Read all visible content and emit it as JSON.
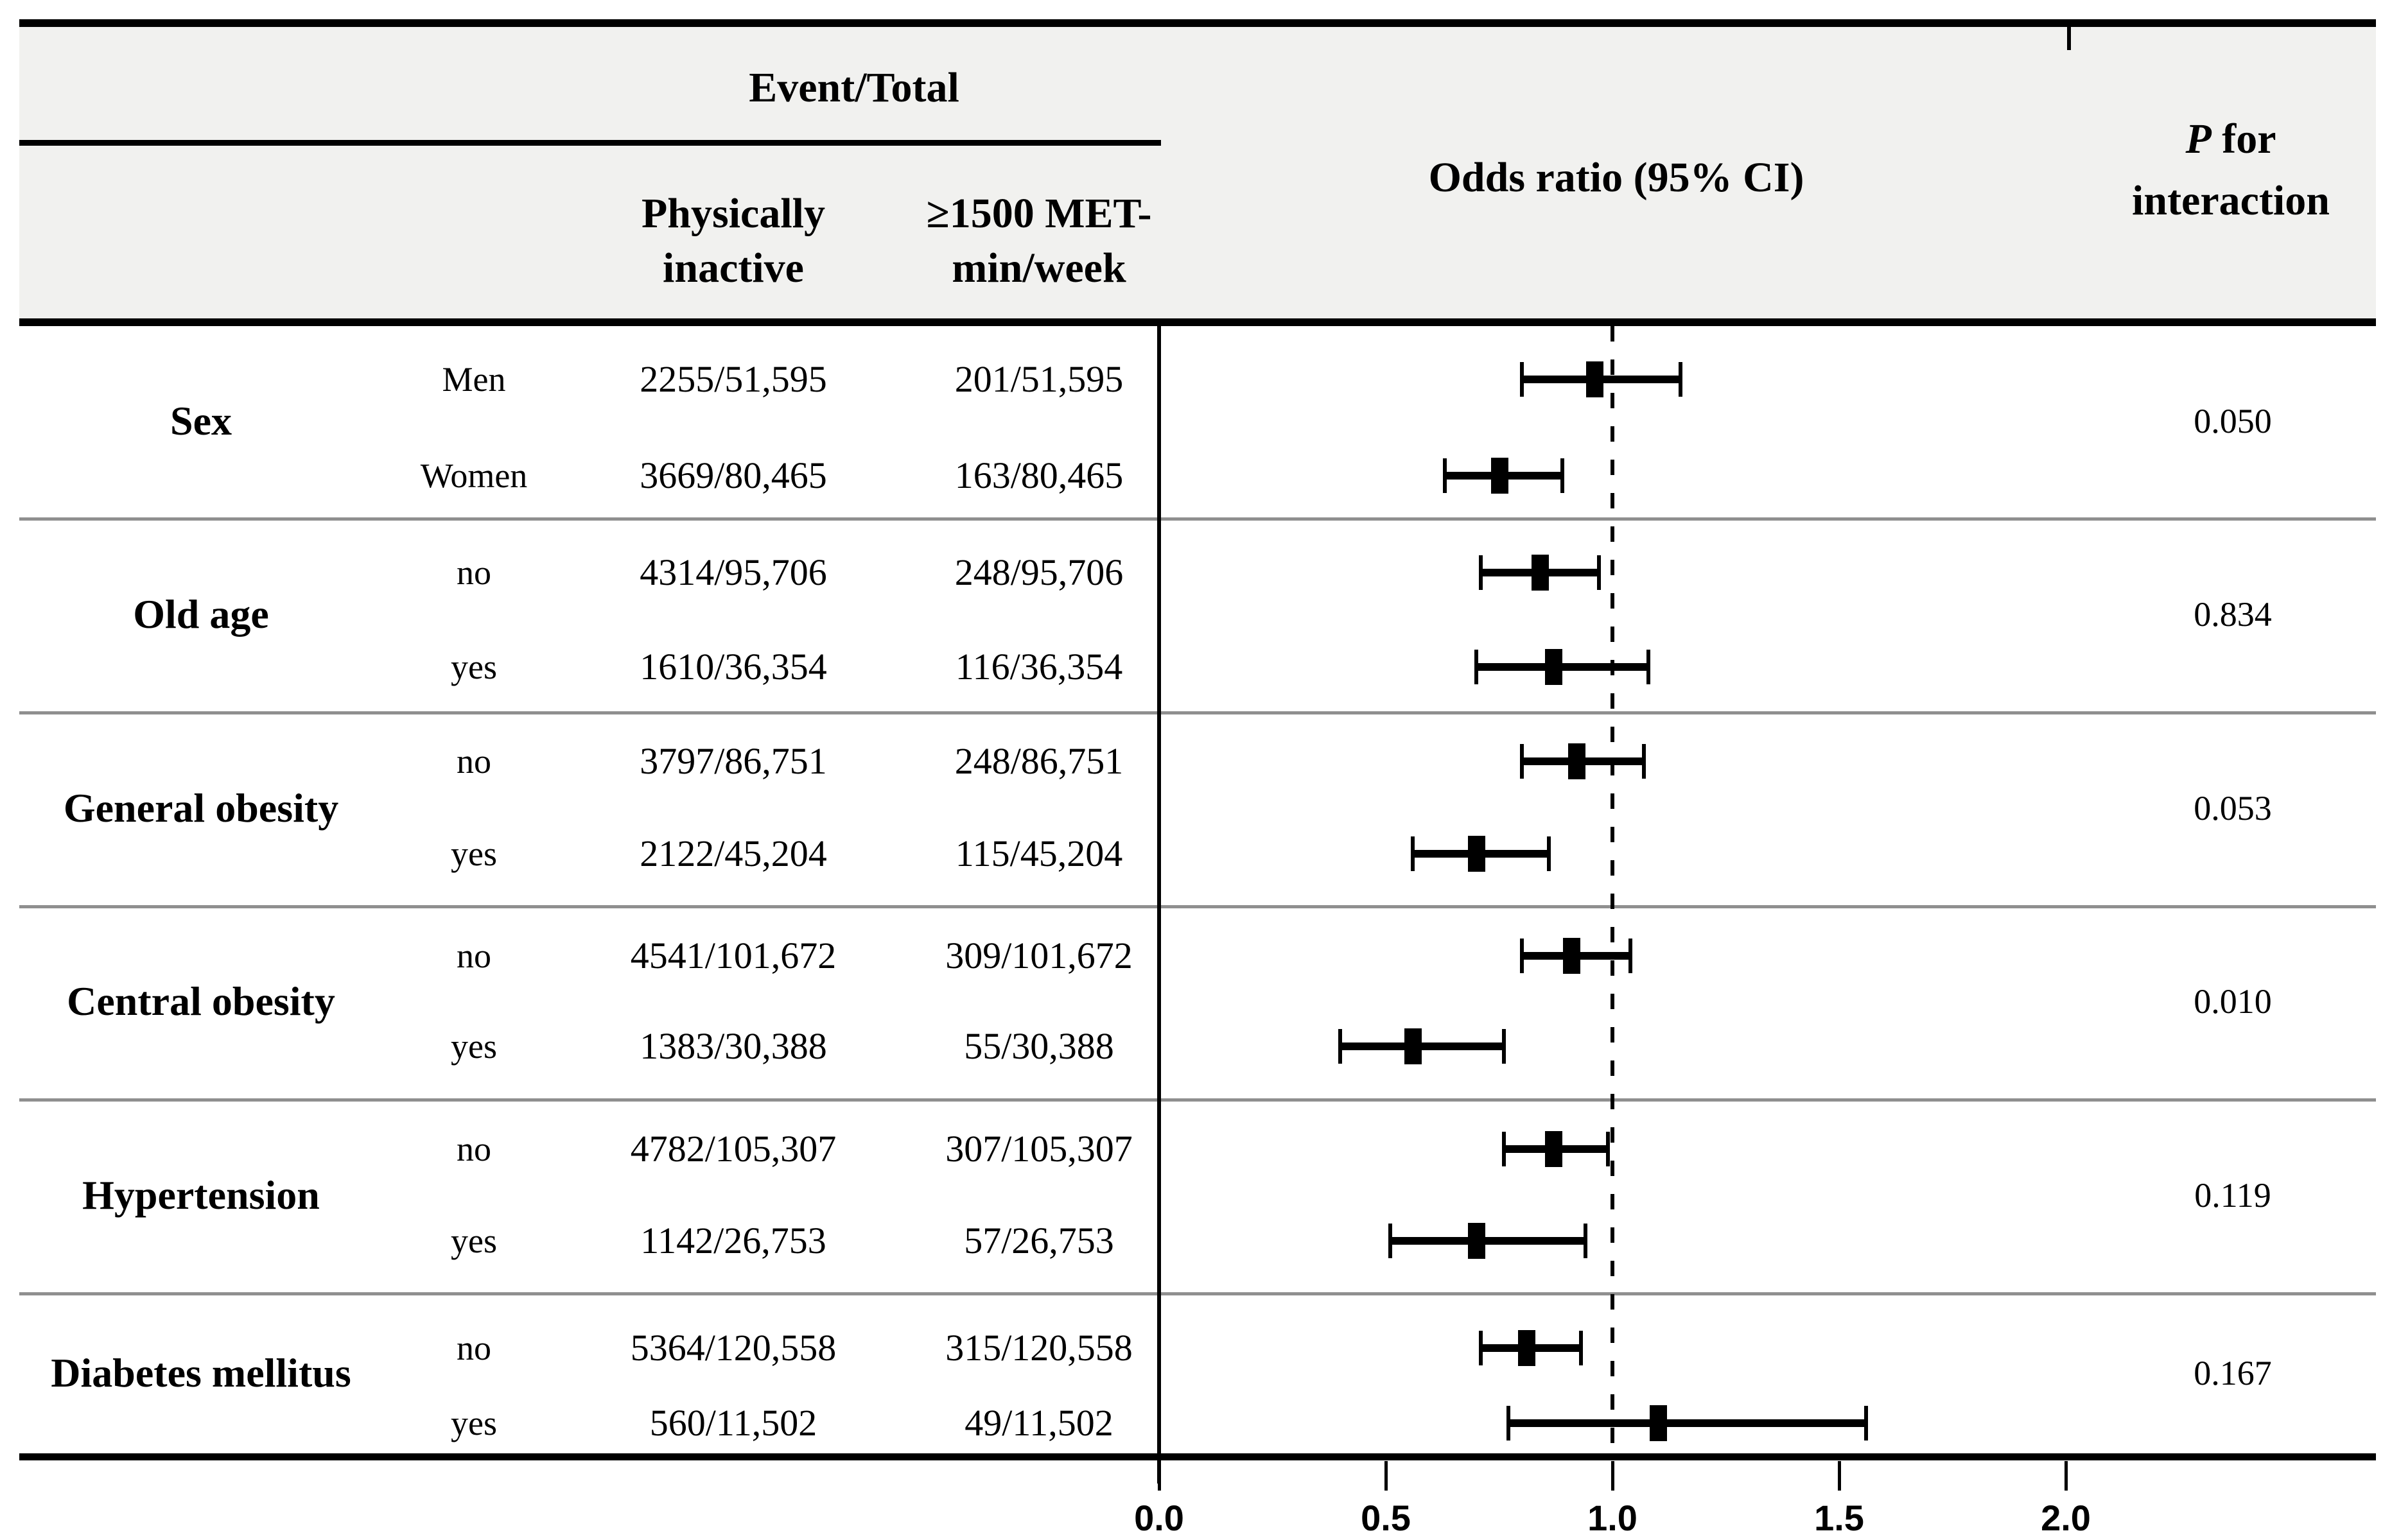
{
  "table": {
    "header": {
      "event_total": "Event/Total",
      "col_inactive_line1": "Physically",
      "col_inactive_line2": "inactive",
      "col_active_line1": "≥1500 MET-",
      "col_active_line2": "min/week",
      "odds_ratio": "Odds ratio (95% CI)",
      "p_italic": "P",
      "p_rest": " for",
      "p_line2": "interaction"
    },
    "groups": [
      {
        "name": "Sex",
        "p_interaction": "0.050",
        "rows": [
          {
            "label": "Men",
            "inactive": "2255/51,595",
            "active": "201/51,595"
          },
          {
            "label": "Women",
            "inactive": "3669/80,465",
            "active": "163/80,465"
          }
        ]
      },
      {
        "name": "Old age",
        "p_interaction": "0.834",
        "rows": [
          {
            "label": "no",
            "inactive": "4314/95,706",
            "active": "248/95,706"
          },
          {
            "label": "yes",
            "inactive": "1610/36,354",
            "active": "116/36,354"
          }
        ]
      },
      {
        "name": "General obesity",
        "p_interaction": "0.053",
        "rows": [
          {
            "label": "no",
            "inactive": "3797/86,751",
            "active": "248/86,751"
          },
          {
            "label": "yes",
            "inactive": "2122/45,204",
            "active": "115/45,204"
          }
        ]
      },
      {
        "name": "Central obesity",
        "p_interaction": "0.010",
        "rows": [
          {
            "label": "no",
            "inactive": "4541/101,672",
            "active": "309/101,672"
          },
          {
            "label": "yes",
            "inactive": "1383/30,388",
            "active": "55/30,388"
          }
        ]
      },
      {
        "name": "Hypertension",
        "p_interaction": "0.119",
        "rows": [
          {
            "label": "no",
            "inactive": "4782/105,307",
            "active": "307/105,307"
          },
          {
            "label": "yes",
            "inactive": "1142/26,753",
            "active": "57/26,753"
          }
        ]
      },
      {
        "name": "Diabetes mellitus",
        "p_interaction": "0.167",
        "rows": [
          {
            "label": "no",
            "inactive": "5364/120,558",
            "active": "315/120,558"
          },
          {
            "label": "yes",
            "inactive": "560/11,502",
            "active": "49/11,502"
          }
        ]
      }
    ]
  },
  "chart_data": {
    "type": "scatter",
    "subtype": "forest-plot",
    "title": "Odds ratio (95% CI)",
    "xlabel": "Odds ratio",
    "xlim": [
      0.0,
      2.68
    ],
    "x_ticks": [
      0.0,
      0.5,
      1.0,
      1.5,
      2.0
    ],
    "x_tick_labels": [
      "0.0",
      "0.5",
      "1.0",
      "1.5",
      "2.0"
    ],
    "reference_line": 1.0,
    "grid": false,
    "series": [
      {
        "group": "Sex",
        "subgroup": "Men",
        "or": 0.96,
        "ci_low": 0.8,
        "ci_high": 1.15
      },
      {
        "group": "Sex",
        "subgroup": "Women",
        "or": 0.75,
        "ci_low": 0.63,
        "ci_high": 0.89
      },
      {
        "group": "Old age",
        "subgroup": "no",
        "or": 0.84,
        "ci_low": 0.71,
        "ci_high": 0.97
      },
      {
        "group": "Old age",
        "subgroup": "yes",
        "or": 0.87,
        "ci_low": 0.7,
        "ci_high": 1.08
      },
      {
        "group": "General obesity",
        "subgroup": "no",
        "or": 0.92,
        "ci_low": 0.8,
        "ci_high": 1.07
      },
      {
        "group": "General obesity",
        "subgroup": "yes",
        "or": 0.7,
        "ci_low": 0.56,
        "ci_high": 0.86
      },
      {
        "group": "Central obesity",
        "subgroup": "no",
        "or": 0.91,
        "ci_low": 0.8,
        "ci_high": 1.04
      },
      {
        "group": "Central obesity",
        "subgroup": "yes",
        "or": 0.56,
        "ci_low": 0.4,
        "ci_high": 0.76
      },
      {
        "group": "Hypertension",
        "subgroup": "no",
        "or": 0.87,
        "ci_low": 0.76,
        "ci_high": 0.99
      },
      {
        "group": "Hypertension",
        "subgroup": "yes",
        "or": 0.7,
        "ci_low": 0.51,
        "ci_high": 0.94
      },
      {
        "group": "Diabetes mellitus",
        "subgroup": "no",
        "or": 0.81,
        "ci_low": 0.71,
        "ci_high": 0.93
      },
      {
        "group": "Diabetes mellitus",
        "subgroup": "yes",
        "or": 1.1,
        "ci_low": 0.77,
        "ci_high": 1.56
      }
    ],
    "colors": {
      "marker": "#000000",
      "header_band": "#f1f1ef",
      "separator": "#8f8f8f"
    }
  }
}
